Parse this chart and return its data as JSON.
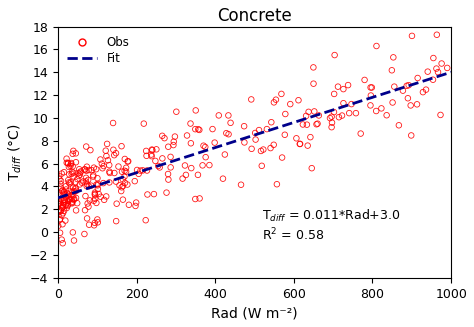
{
  "title": "Concrete",
  "xlabel": "Rad (W m⁻²)",
  "ylabel": "T$_{diff}$ (°C)",
  "xlim": [
    0,
    1000
  ],
  "ylim": [
    -4,
    18
  ],
  "xticks": [
    0,
    200,
    400,
    600,
    800,
    1000
  ],
  "yticks": [
    -4,
    -2,
    0,
    2,
    4,
    6,
    8,
    10,
    12,
    14,
    16,
    18
  ],
  "fit_slope": 0.011,
  "fit_intercept": 3.0,
  "r2": 0.58,
  "equation_text": "T$_{diff}$ = 0.011*Rad+3.0",
  "r2_text": "R$^{2}$ = 0.58",
  "scatter_color": "#FF0000",
  "fit_color": "#00008B",
  "marker_size": 4,
  "seed": 42,
  "n_points": 350
}
